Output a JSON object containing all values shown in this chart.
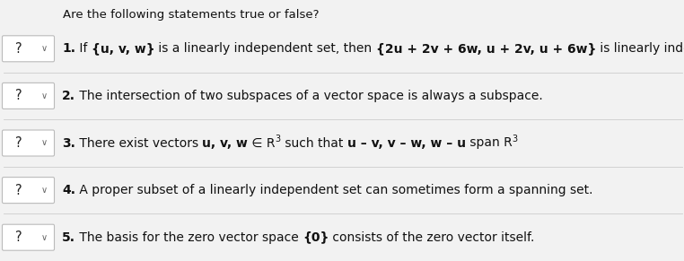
{
  "title": "Are the following statements true or false?",
  "background_color": "#f2f2f2",
  "box_facecolor": "#ffffff",
  "box_edgecolor": "#bbbbbb",
  "text_color": "#111111",
  "rows": [
    {
      "parts": [
        {
          "t": "1.",
          "bold": true,
          "size": 10
        },
        {
          "t": " If ",
          "bold": false,
          "size": 10
        },
        {
          "t": "{u, v, w}",
          "bold": true,
          "size": 10
        },
        {
          "t": " is a linearly independent set, then ",
          "bold": false,
          "size": 10
        },
        {
          "t": "{2u + 2v + 6w, u + 2v, u + 6w}",
          "bold": true,
          "size": 10
        },
        {
          "t": " is linearly independent.",
          "bold": false,
          "size": 10
        }
      ]
    },
    {
      "parts": [
        {
          "t": "2.",
          "bold": true,
          "size": 10
        },
        {
          "t": " The intersection of two subspaces of a vector space is always a subspace.",
          "bold": false,
          "size": 10
        }
      ]
    },
    {
      "parts": [
        {
          "t": "3.",
          "bold": true,
          "size": 10
        },
        {
          "t": " There exist vectors ",
          "bold": false,
          "size": 10
        },
        {
          "t": "u, v, w",
          "bold": true,
          "size": 10
        },
        {
          "t": " ∈ R",
          "bold": false,
          "size": 10
        },
        {
          "t": "3",
          "bold": false,
          "size": 7,
          "sup": true
        },
        {
          "t": " such that ",
          "bold": false,
          "size": 10
        },
        {
          "t": "u – v, v – w, w – u",
          "bold": true,
          "size": 10
        },
        {
          "t": " span R",
          "bold": false,
          "size": 10
        },
        {
          "t": "3",
          "bold": false,
          "size": 7,
          "sup": true
        }
      ]
    },
    {
      "parts": [
        {
          "t": "4.",
          "bold": true,
          "size": 10
        },
        {
          "t": " A proper subset of a linearly independent set can sometimes form a spanning set.",
          "bold": false,
          "size": 10
        }
      ]
    },
    {
      "parts": [
        {
          "t": "5.",
          "bold": true,
          "size": 10
        },
        {
          "t": " The basis for the zero vector space ",
          "bold": false,
          "size": 10
        },
        {
          "t": "{0}",
          "bold": true,
          "size": 10
        },
        {
          "t": " consists of the zero vector itself.",
          "bold": false,
          "size": 10
        }
      ]
    }
  ]
}
